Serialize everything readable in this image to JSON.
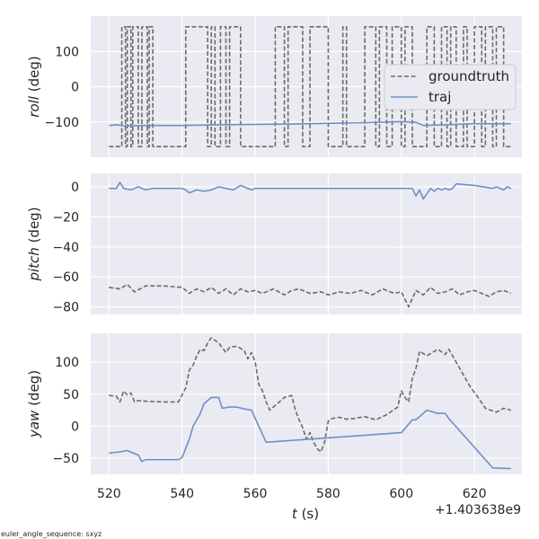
{
  "chart_data": {
    "type": "line",
    "x_tick_labels": [
      "520",
      "540",
      "560",
      "580",
      "600",
      "620"
    ],
    "xlim": [
      515,
      633
    ],
    "x_offset_label": "+1.403638e9",
    "xlabel_var": "t",
    "xlabel_unit": "(s)",
    "footnote": "euler_angle_sequence: sxyz",
    "legend": {
      "placement": "upper-right of top panel",
      "entries": [
        {
          "label": "groundtruth",
          "style": "dashed",
          "color": "#6b6b6b"
        },
        {
          "label": "traj",
          "style": "solid",
          "color": "#6f8fc9"
        }
      ]
    },
    "panels": [
      {
        "name": "roll",
        "ylabel_var": "roll",
        "ylabel_unit": "(deg)",
        "ylim": [
          -200,
          200
        ],
        "y_ticks": [
          100,
          0,
          -100
        ],
        "y_tick_labels": [
          "100",
          "0",
          "−100"
        ],
        "series": [
          {
            "name": "groundtruth",
            "style": "wrap",
            "base": -170,
            "wraps": [
              [
                523.5,
                524.5
              ],
              [
                525,
                526
              ],
              [
                526.5,
                528
              ],
              [
                529,
                530.5
              ],
              [
                531,
                532
              ],
              [
                541,
                547
              ],
              [
                548,
                549
              ],
              [
                550.5,
                552
              ],
              [
                553,
                556
              ],
              [
                565.5,
                568
              ],
              [
                569,
                573
              ],
              [
                575,
                580
              ],
              [
                584,
                585
              ],
              [
                590,
                593
              ],
              [
                594,
                596
              ],
              [
                597.5,
                600
              ],
              [
                601,
                603
              ],
              [
                607,
                609
              ],
              [
                611,
                612.5
              ],
              [
                613.5,
                615
              ],
              [
                617,
                618
              ],
              [
                620,
                622
              ],
              [
                623,
                625
              ],
              [
                626,
                628
              ]
            ]
          },
          {
            "name": "traj",
            "x": [
              520,
              522,
              524,
              530,
              540,
              550,
              560,
              570,
              580,
              590,
              600,
              604,
              606,
              612,
              620,
              630
            ],
            "y": [
              -110,
              -108,
              -111,
              -110,
              -110,
              -108,
              -107,
              -106,
              -104,
              -102,
              -99,
              -101,
              -110,
              -108,
              -105,
              -105
            ]
          }
        ]
      },
      {
        "name": "pitch",
        "ylabel_var": "pitch",
        "ylabel_unit": "(deg)",
        "ylim": [
          -85,
          9
        ],
        "y_ticks": [
          0,
          -20,
          -40,
          -60,
          -80
        ],
        "y_tick_labels": [
          "0",
          "−20",
          "−40",
          "−60",
          "−80"
        ],
        "series": [
          {
            "name": "groundtruth",
            "x": [
              520,
              523,
              525,
              527,
              530,
              535,
              540,
              542,
              544,
              546,
              548,
              550,
              552,
              554,
              556,
              558,
              560,
              562,
              565,
              568,
              570,
              572,
              575,
              578,
              580,
              583,
              586,
              589,
              592,
              595,
              598,
              600,
              602,
              604,
              606,
              608,
              610,
              612,
              614,
              616,
              618,
              620,
              622,
              624,
              626,
              628,
              630
            ],
            "y": [
              -67,
              -68,
              -65,
              -70,
              -66,
              -66,
              -67,
              -71,
              -68,
              -70,
              -67,
              -71,
              -68,
              -72,
              -68,
              -70,
              -69,
              -71,
              -68,
              -72,
              -69,
              -68,
              -71,
              -70,
              -72,
              -70,
              -71,
              -69,
              -72,
              -68,
              -71,
              -70,
              -80,
              -69,
              -72,
              -67,
              -71,
              -70,
              -68,
              -72,
              -70,
              -69,
              -71,
              -73,
              -70,
              -69,
              -71
            ]
          },
          {
            "name": "traj",
            "x": [
              520,
              522,
              523,
              524,
              526,
              528,
              530,
              532,
              535,
              540,
              541,
              542,
              544,
              546,
              548,
              550,
              552,
              554,
              556,
              558,
              559,
              560,
              561,
              570,
              580,
              590,
              600,
              602,
              603,
              604,
              605,
              606,
              608,
              609,
              610,
              611,
              612,
              613,
              614,
              615,
              620,
              625,
              626,
              628,
              629,
              630
            ],
            "y": [
              -1,
              -1,
              3,
              -1,
              -2,
              0,
              -2,
              -1,
              -1,
              -1,
              -2,
              -4,
              -2,
              -3,
              -2,
              0,
              -1,
              -2,
              1,
              -1,
              -2,
              -1,
              -1,
              -1,
              -1,
              -1,
              -1,
              -1,
              -1,
              -6,
              -2,
              -8,
              -1,
              -3,
              -1,
              -2,
              -1,
              -2,
              -1,
              2,
              1,
              -1,
              0,
              -2,
              0,
              -1
            ]
          }
        ]
      },
      {
        "name": "yaw",
        "ylabel_var": "yaw",
        "ylabel_unit": "(deg)",
        "ylim": [
          -75,
          145
        ],
        "y_ticks": [
          100,
          50,
          0,
          -50
        ],
        "y_tick_labels": [
          "100",
          "50",
          "0",
          "−50"
        ],
        "series": [
          {
            "name": "groundtruth",
            "x": [
              520,
              522,
              523,
              524,
              525,
              526,
              527,
              528,
              530,
              535,
              539,
              541,
              542,
              543,
              544,
              545,
              546,
              547,
              548,
              550,
              552,
              553,
              555,
              557,
              558,
              559,
              560,
              561,
              562,
              563,
              564,
              566,
              568,
              570,
              571,
              572,
              573,
              574,
              575,
              576,
              577,
              578,
              579,
              580,
              581,
              583,
              585,
              587,
              590,
              593,
              596,
              599,
              600,
              601,
              602,
              603,
              604,
              605,
              607,
              610,
              612,
              613,
              614,
              615,
              617,
              619,
              621,
              623,
              626,
              628,
              630
            ],
            "y": [
              48,
              47,
              38,
              55,
              49,
              52,
              38,
              40,
              39,
              38,
              38,
              60,
              88,
              95,
              110,
              120,
              118,
              130,
              138,
              130,
              115,
              123,
              125,
              118,
              105,
              115,
              100,
              65,
              55,
              38,
              25,
              35,
              45,
              48,
              25,
              10,
              -2,
              -20,
              -10,
              -25,
              -35,
              -40,
              -25,
              8,
              12,
              14,
              11,
              12,
              15,
              10,
              18,
              30,
              55,
              45,
              38,
              75,
              90,
              117,
              110,
              120,
              112,
              120,
              110,
              100,
              80,
              60,
              45,
              28,
              22,
              28,
              25
            ]
          },
          {
            "name": "traj",
            "x": [
              520,
              523,
              525,
              528,
              529,
              530,
              535,
              539,
              540,
              542,
              543,
              544,
              545,
              546,
              548,
              550,
              551,
              553,
              555,
              557,
              559,
              561,
              563,
              600,
              603,
              604,
              607,
              610,
              612,
              613,
              625,
              630
            ],
            "y": [
              -42,
              -40,
              -38,
              -45,
              -55,
              -52,
              -52,
              -52,
              -49,
              -20,
              0,
              10,
              20,
              35,
              45,
              45,
              28,
              30,
              30,
              27,
              25,
              0,
              -25,
              -10,
              10,
              10,
              25,
              20,
              20,
              12,
              -65,
              -66
            ]
          }
        ]
      }
    ]
  }
}
